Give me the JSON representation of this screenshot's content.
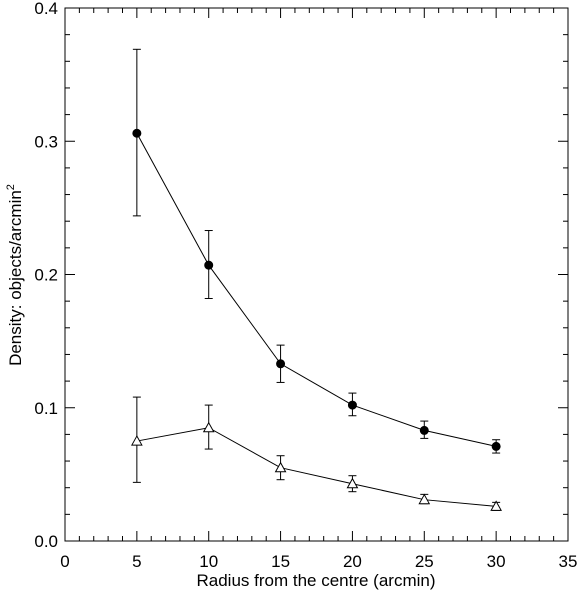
{
  "chart_data": {
    "type": "scatter",
    "xlabel": "Radius from the centre (arcmin)",
    "ylabel_main": "Density: objects/arcmin",
    "ylabel_sup": "2",
    "xlim": [
      0,
      35
    ],
    "ylim": [
      0,
      0.4
    ],
    "xticks": [
      0,
      5,
      10,
      15,
      20,
      25,
      30,
      35
    ],
    "xtick_labels": [
      "0",
      "5",
      "10",
      "15",
      "20",
      "25",
      "30",
      "35"
    ],
    "yticks": [
      0,
      0.1,
      0.2,
      0.3,
      0.4
    ],
    "ytick_labels": [
      "0.0",
      "0.1",
      "0.2",
      "0.3",
      "0.4"
    ],
    "grid": false,
    "series": [
      {
        "marker": "filled-circle",
        "connected": true,
        "x": [
          5,
          10,
          15,
          20,
          25,
          30
        ],
        "y": [
          0.306,
          0.207,
          0.133,
          0.102,
          0.083,
          0.071
        ],
        "err_low": [
          0.244,
          0.182,
          0.119,
          0.094,
          0.077,
          0.066
        ],
        "err_high": [
          0.369,
          0.233,
          0.147,
          0.111,
          0.09,
          0.076
        ]
      },
      {
        "marker": "open-triangle",
        "connected": true,
        "x": [
          5,
          10,
          15,
          20,
          25,
          30
        ],
        "y": [
          0.075,
          0.085,
          0.055,
          0.043,
          0.031,
          0.026
        ],
        "err_low": [
          0.044,
          0.069,
          0.046,
          0.037,
          0.028,
          0.023
        ],
        "err_high": [
          0.108,
          0.102,
          0.064,
          0.049,
          0.035,
          0.029
        ]
      }
    ]
  }
}
